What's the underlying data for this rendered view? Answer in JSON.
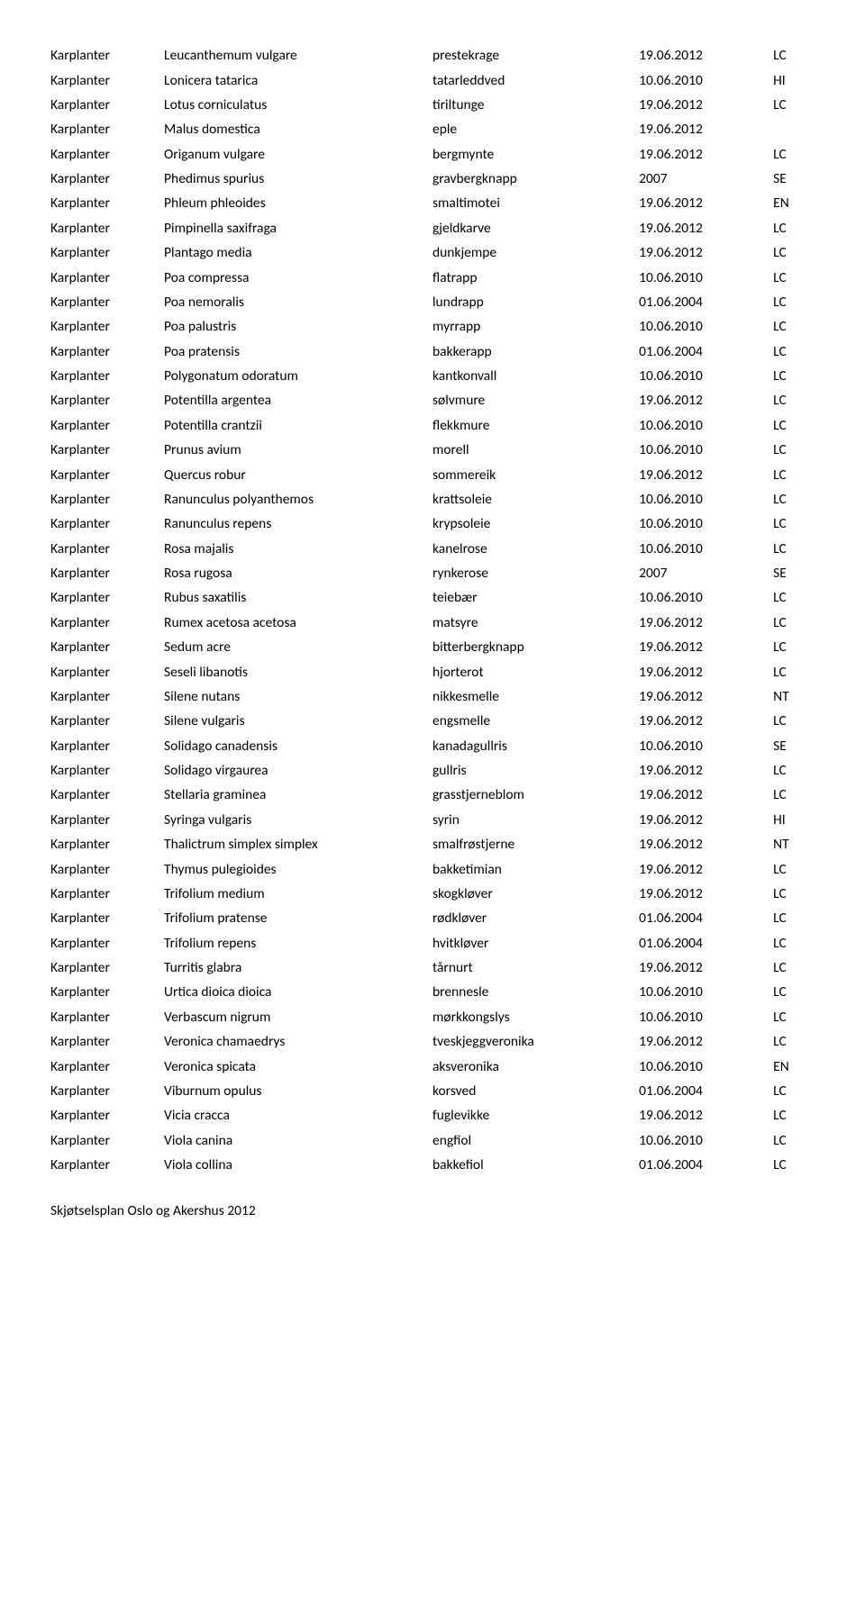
{
  "rows": [
    {
      "g": "Karplanter",
      "l": "Leucanthemum vulgare",
      "n": "prestekrage",
      "d": "19.06.2012",
      "s": "LC"
    },
    {
      "g": "Karplanter",
      "l": "Lonicera tatarica",
      "n": "tatarleddved",
      "d": "10.06.2010",
      "s": "HI"
    },
    {
      "g": "Karplanter",
      "l": "Lotus corniculatus",
      "n": "tiriltunge",
      "d": "19.06.2012",
      "s": "LC"
    },
    {
      "g": "Karplanter",
      "l": "Malus domestica",
      "n": "eple",
      "d": "19.06.2012",
      "s": ""
    },
    {
      "g": "Karplanter",
      "l": "Origanum vulgare",
      "n": "bergmynte",
      "d": "19.06.2012",
      "s": "LC"
    },
    {
      "g": "Karplanter",
      "l": "Phedimus spurius",
      "n": "gravbergknapp",
      "d": "2007",
      "s": "SE"
    },
    {
      "g": "Karplanter",
      "l": "Phleum phleoides",
      "n": "smaltimotei",
      "d": "19.06.2012",
      "s": "EN"
    },
    {
      "g": "Karplanter",
      "l": "Pimpinella saxifraga",
      "n": "gjeldkarve",
      "d": "19.06.2012",
      "s": "LC"
    },
    {
      "g": "Karplanter",
      "l": "Plantago media",
      "n": "dunkjempe",
      "d": "19.06.2012",
      "s": "LC"
    },
    {
      "g": "Karplanter",
      "l": "Poa compressa",
      "n": "flatrapp",
      "d": "10.06.2010",
      "s": "LC"
    },
    {
      "g": "Karplanter",
      "l": "Poa nemoralis",
      "n": "lundrapp",
      "d": "01.06.2004",
      "s": "LC"
    },
    {
      "g": "Karplanter",
      "l": "Poa palustris",
      "n": "myrrapp",
      "d": "10.06.2010",
      "s": "LC"
    },
    {
      "g": "Karplanter",
      "l": "Poa pratensis",
      "n": "bakkerapp",
      "d": "01.06.2004",
      "s": "LC"
    },
    {
      "g": "Karplanter",
      "l": "Polygonatum odoratum",
      "n": "kantkonvall",
      "d": "10.06.2010",
      "s": "LC"
    },
    {
      "g": "Karplanter",
      "l": "Potentilla argentea",
      "n": "sølvmure",
      "d": "19.06.2012",
      "s": "LC"
    },
    {
      "g": "Karplanter",
      "l": "Potentilla crantzii",
      "n": "flekkmure",
      "d": "10.06.2010",
      "s": "LC"
    },
    {
      "g": "Karplanter",
      "l": "Prunus avium",
      "n": "morell",
      "d": "10.06.2010",
      "s": "LC"
    },
    {
      "g": "Karplanter",
      "l": "Quercus robur",
      "n": "sommereik",
      "d": "19.06.2012",
      "s": "LC"
    },
    {
      "g": "Karplanter",
      "l": "Ranunculus polyanthemos",
      "n": "krattsoleie",
      "d": "10.06.2010",
      "s": "LC"
    },
    {
      "g": "Karplanter",
      "l": "Ranunculus repens",
      "n": "krypsoleie",
      "d": "10.06.2010",
      "s": "LC"
    },
    {
      "g": "Karplanter",
      "l": "Rosa majalis",
      "n": "kanelrose",
      "d": "10.06.2010",
      "s": "LC"
    },
    {
      "g": "Karplanter",
      "l": "Rosa rugosa",
      "n": "rynkerose",
      "d": "2007",
      "s": "SE"
    },
    {
      "g": "Karplanter",
      "l": "Rubus saxatilis",
      "n": "teiebær",
      "d": "10.06.2010",
      "s": "LC"
    },
    {
      "g": "Karplanter",
      "l": "Rumex acetosa acetosa",
      "n": "matsyre",
      "d": "19.06.2012",
      "s": "LC"
    },
    {
      "g": "Karplanter",
      "l": "Sedum acre",
      "n": "bitterbergknapp",
      "d": "19.06.2012",
      "s": "LC"
    },
    {
      "g": "Karplanter",
      "l": "Seseli libanotis",
      "n": "hjorterot",
      "d": "19.06.2012",
      "s": "LC"
    },
    {
      "g": "Karplanter",
      "l": "Silene nutans",
      "n": "nikkesmelle",
      "d": "19.06.2012",
      "s": "NT"
    },
    {
      "g": "Karplanter",
      "l": "Silene vulgaris",
      "n": "engsmelle",
      "d": "19.06.2012",
      "s": "LC"
    },
    {
      "g": "Karplanter",
      "l": "Solidago canadensis",
      "n": "kanadagullris",
      "d": "10.06.2010",
      "s": "SE"
    },
    {
      "g": "Karplanter",
      "l": "Solidago virgaurea",
      "n": "gullris",
      "d": "19.06.2012",
      "s": "LC"
    },
    {
      "g": "Karplanter",
      "l": "Stellaria graminea",
      "n": "grasstjerneblom",
      "d": "19.06.2012",
      "s": "LC"
    },
    {
      "g": "Karplanter",
      "l": "Syringa vulgaris",
      "n": "syrin",
      "d": "19.06.2012",
      "s": "HI"
    },
    {
      "g": "Karplanter",
      "l": "Thalictrum simplex simplex",
      "n": "smalfrøstjerne",
      "d": "19.06.2012",
      "s": "NT"
    },
    {
      "g": "Karplanter",
      "l": "Thymus pulegioides",
      "n": "bakketimian",
      "d": "19.06.2012",
      "s": "LC"
    },
    {
      "g": "Karplanter",
      "l": "Trifolium medium",
      "n": "skogkløver",
      "d": "19.06.2012",
      "s": "LC"
    },
    {
      "g": "Karplanter",
      "l": "Trifolium pratense",
      "n": "rødkløver",
      "d": "01.06.2004",
      "s": "LC"
    },
    {
      "g": "Karplanter",
      "l": "Trifolium repens",
      "n": "hvitkløver",
      "d": "01.06.2004",
      "s": "LC"
    },
    {
      "g": "Karplanter",
      "l": "Turritis glabra",
      "n": "tårnurt",
      "d": "19.06.2012",
      "s": "LC"
    },
    {
      "g": "Karplanter",
      "l": "Urtica dioica dioica",
      "n": "brennesle",
      "d": "10.06.2010",
      "s": "LC"
    },
    {
      "g": "Karplanter",
      "l": "Verbascum nigrum",
      "n": "mørkkongslys",
      "d": "10.06.2010",
      "s": "LC"
    },
    {
      "g": "Karplanter",
      "l": "Veronica chamaedrys",
      "n": "tveskjeggveronika",
      "d": "19.06.2012",
      "s": "LC"
    },
    {
      "g": "Karplanter",
      "l": "Veronica spicata",
      "n": "aksveronika",
      "d": "10.06.2010",
      "s": "EN"
    },
    {
      "g": "Karplanter",
      "l": "Viburnum opulus",
      "n": "korsved",
      "d": "01.06.2004",
      "s": "LC"
    },
    {
      "g": "Karplanter",
      "l": "Vicia cracca",
      "n": "fuglevikke",
      "d": "19.06.2012",
      "s": "LC"
    },
    {
      "g": "Karplanter",
      "l": "Viola canina",
      "n": "engfiol",
      "d": "10.06.2010",
      "s": "LC"
    },
    {
      "g": "Karplanter",
      "l": "Viola collina",
      "n": "bakkefiol",
      "d": "01.06.2004",
      "s": "LC"
    }
  ],
  "footer": "Skjøtselsplan Oslo og Akershus 2012"
}
